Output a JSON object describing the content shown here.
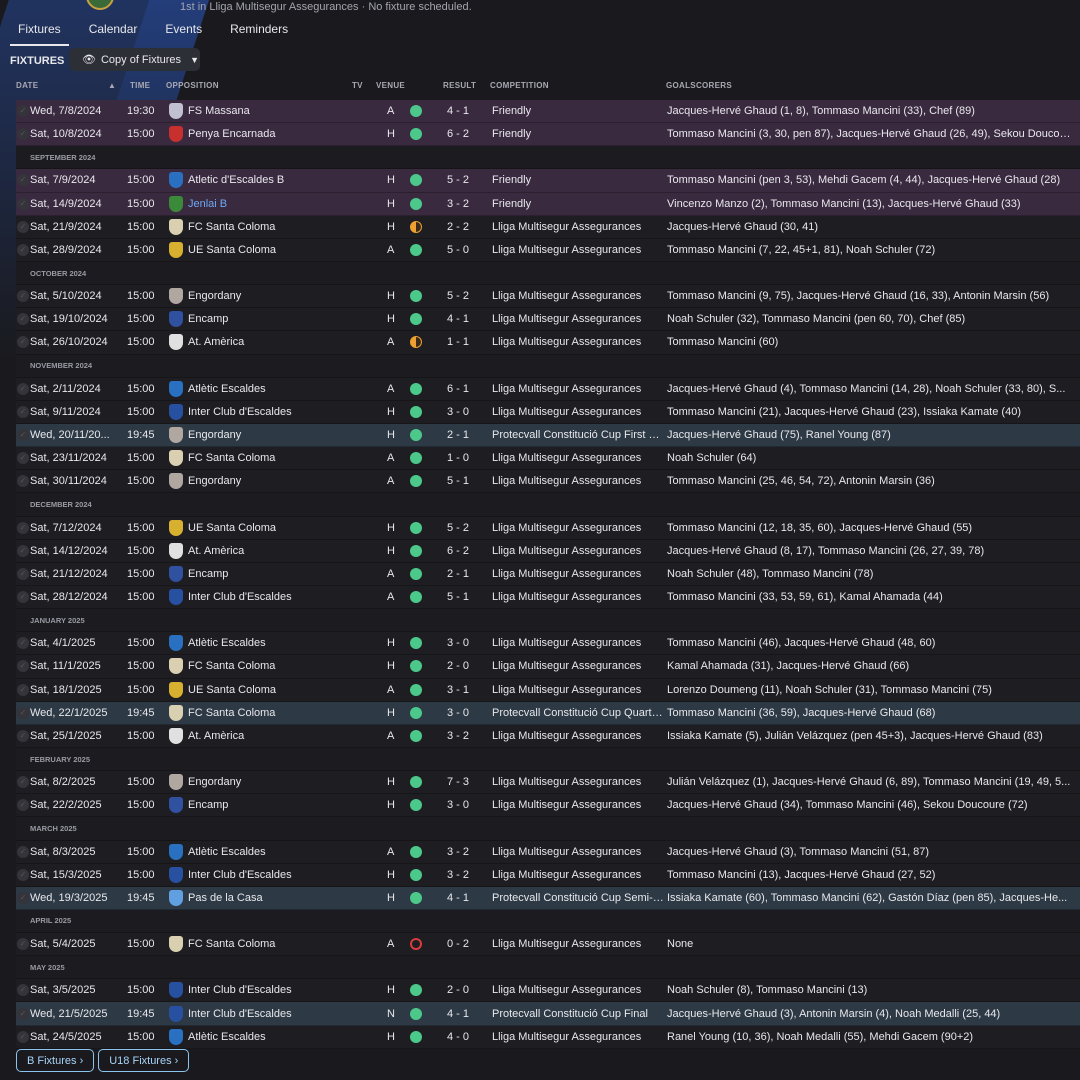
{
  "header": {
    "subtitle": "1st in Lliga Multisegur Assegurances · No fixture scheduled."
  },
  "tabs": [
    "Fixtures",
    "Calendar",
    "Events",
    "Reminders"
  ],
  "section_title": "FIXTURES",
  "view_selector": "Copy of Fixtures",
  "columns": {
    "date": "DATE",
    "time": "TIME",
    "opposition": "OPPOSITION",
    "tv": "TV",
    "venue": "VENUE",
    "result": "RESULT",
    "competition": "COMPETITION",
    "goalscorers": "GOALSCORERS"
  },
  "colors": {
    "win": "#4cc98a",
    "draw": "#f0a030",
    "loss": "#d83c3c",
    "friendly_row": "#3a2a40",
    "cup_row": "#2d3944"
  },
  "rows": [
    {
      "type": "friendly",
      "date": "Wed, 7/8/2024",
      "time": "19:30",
      "opp": "FS Massana",
      "crest": "#c0c0d0",
      "venue": "A",
      "result": "win",
      "score": "4 - 1",
      "comp": "Friendly",
      "scorers": "Jacques-Hervé Ghaud (1, 8), Tommaso Mancini (33), Chef (89)"
    },
    {
      "type": "friendly",
      "date": "Sat, 10/8/2024",
      "time": "15:00",
      "opp": "Penya Encarnada",
      "crest": "#c83030",
      "venue": "H",
      "result": "win",
      "score": "6 - 2",
      "comp": "Friendly",
      "scorers": "Tommaso Mancini (3, 30, pen 87), Jacques-Hervé Ghaud (26, 49), Sekou Doucoure"
    },
    {
      "type": "month",
      "label": "SEPTEMBER 2024"
    },
    {
      "type": "friendly",
      "date": "Sat, 7/9/2024",
      "time": "15:00",
      "opp": "Atletic d'Escaldes B",
      "crest": "#2a70c0",
      "venue": "H",
      "result": "win",
      "score": "5 - 2",
      "comp": "Friendly",
      "scorers": "Tommaso Mancini (pen 3, 53), Mehdi Gacem (4, 44), Jacques-Hervé Ghaud (28)"
    },
    {
      "type": "friendly",
      "date": "Sat, 14/9/2024",
      "time": "15:00",
      "opp": "Jenlai B",
      "link": true,
      "crest": "#3a8a3a",
      "venue": "H",
      "result": "win",
      "score": "3 - 2",
      "comp": "Friendly",
      "scorers": "Vincenzo Manzo (2), Tommaso Mancini (13), Jacques-Hervé Ghaud (33)"
    },
    {
      "type": "league",
      "date": "Sat, 21/9/2024",
      "time": "15:00",
      "opp": "FC Santa Coloma",
      "crest": "#d8d0b0",
      "venue": "H",
      "result": "draw",
      "score": "2 - 2",
      "comp": "Lliga Multisegur Assegurances",
      "scorers": "Jacques-Hervé Ghaud (30, 41)"
    },
    {
      "type": "league",
      "date": "Sat, 28/9/2024",
      "time": "15:00",
      "opp": "UE Santa Coloma",
      "crest": "#d8b030",
      "venue": "A",
      "result": "win",
      "score": "5 - 0",
      "comp": "Lliga Multisegur Assegurances",
      "scorers": "Tommaso Mancini (7, 22, 45+1, 81), Noah Schuler (72)"
    },
    {
      "type": "month",
      "label": "OCTOBER 2024"
    },
    {
      "type": "league",
      "date": "Sat, 5/10/2024",
      "time": "15:00",
      "opp": "Engordany",
      "crest": "#b0a8a0",
      "venue": "H",
      "result": "win",
      "score": "5 - 2",
      "comp": "Lliga Multisegur Assegurances",
      "scorers": "Tommaso Mancini (9, 75), Jacques-Hervé Ghaud (16, 33), Antonin Marsin (56)"
    },
    {
      "type": "league",
      "date": "Sat, 19/10/2024",
      "time": "15:00",
      "opp": "Encamp",
      "crest": "#3050a0",
      "venue": "H",
      "result": "win",
      "score": "4 - 1",
      "comp": "Lliga Multisegur Assegurances",
      "scorers": "Noah Schuler (32), Tommaso Mancini (pen 60, 70), Chef (85)"
    },
    {
      "type": "league",
      "date": "Sat, 26/10/2024",
      "time": "15:00",
      "opp": "At. Amèrica",
      "crest": "#e0e0e0",
      "venue": "A",
      "result": "draw",
      "score": "1 - 1",
      "comp": "Lliga Multisegur Assegurances",
      "scorers": "Tommaso Mancini (60)"
    },
    {
      "type": "month",
      "label": "NOVEMBER 2024"
    },
    {
      "type": "league",
      "date": "Sat, 2/11/2024",
      "time": "15:00",
      "opp": "Atlètic Escaldes",
      "crest": "#2a70c0",
      "venue": "A",
      "result": "win",
      "score": "6 - 1",
      "comp": "Lliga Multisegur Assegurances",
      "scorers": "Jacques-Hervé Ghaud (4), Tommaso Mancini (14, 28), Noah Schuler (33, 80), S..."
    },
    {
      "type": "league",
      "date": "Sat, 9/11/2024",
      "time": "15:00",
      "opp": "Inter Club d'Escaldes",
      "crest": "#2850a0",
      "venue": "H",
      "result": "win",
      "score": "3 - 0",
      "comp": "Lliga Multisegur Assegurances",
      "scorers": "Tommaso Mancini (21), Jacques-Hervé Ghaud (23), Issiaka Kamate (40)"
    },
    {
      "type": "cup",
      "date": "Wed, 20/11/20...",
      "time": "19:45",
      "opp": "Engordany",
      "crest": "#b0a8a0",
      "venue": "H",
      "result": "win",
      "score": "2 - 1",
      "comp": "Protecvall Constitució Cup First Round",
      "scorers": "Jacques-Hervé Ghaud (75), Ranel Young (87)"
    },
    {
      "type": "league",
      "date": "Sat, 23/11/2024",
      "time": "15:00",
      "opp": "FC Santa Coloma",
      "crest": "#d8d0b0",
      "venue": "A",
      "result": "win",
      "score": "1 - 0",
      "comp": "Lliga Multisegur Assegurances",
      "scorers": "Noah Schuler (64)"
    },
    {
      "type": "league",
      "date": "Sat, 30/11/2024",
      "time": "15:00",
      "opp": "Engordany",
      "crest": "#b0a8a0",
      "venue": "A",
      "result": "win",
      "score": "5 - 1",
      "comp": "Lliga Multisegur Assegurances",
      "scorers": "Tommaso Mancini (25, 46, 54, 72), Antonin Marsin (36)"
    },
    {
      "type": "month",
      "label": "DECEMBER 2024"
    },
    {
      "type": "league",
      "date": "Sat, 7/12/2024",
      "time": "15:00",
      "opp": "UE Santa Coloma",
      "crest": "#d8b030",
      "venue": "H",
      "result": "win",
      "score": "5 - 2",
      "comp": "Lliga Multisegur Assegurances",
      "scorers": "Tommaso Mancini (12, 18, 35, 60), Jacques-Hervé Ghaud (55)"
    },
    {
      "type": "league",
      "date": "Sat, 14/12/2024",
      "time": "15:00",
      "opp": "At. Amèrica",
      "crest": "#e0e0e0",
      "venue": "H",
      "result": "win",
      "score": "6 - 2",
      "comp": "Lliga Multisegur Assegurances",
      "scorers": "Jacques-Hervé Ghaud (8, 17), Tommaso Mancini (26, 27, 39, 78)"
    },
    {
      "type": "league",
      "date": "Sat, 21/12/2024",
      "time": "15:00",
      "opp": "Encamp",
      "crest": "#3050a0",
      "venue": "A",
      "result": "win",
      "score": "2 - 1",
      "comp": "Lliga Multisegur Assegurances",
      "scorers": "Noah Schuler (48), Tommaso Mancini (78)"
    },
    {
      "type": "league",
      "date": "Sat, 28/12/2024",
      "time": "15:00",
      "opp": "Inter Club d'Escaldes",
      "crest": "#2850a0",
      "venue": "A",
      "result": "win",
      "score": "5 - 1",
      "comp": "Lliga Multisegur Assegurances",
      "scorers": "Tommaso Mancini (33, 53, 59, 61), Kamal Ahamada (44)"
    },
    {
      "type": "month",
      "label": "JANUARY 2025"
    },
    {
      "type": "league",
      "date": "Sat, 4/1/2025",
      "time": "15:00",
      "opp": "Atlètic Escaldes",
      "crest": "#2a70c0",
      "venue": "H",
      "result": "win",
      "score": "3 - 0",
      "comp": "Lliga Multisegur Assegurances",
      "scorers": "Tommaso Mancini (46), Jacques-Hervé Ghaud (48, 60)"
    },
    {
      "type": "league",
      "date": "Sat, 11/1/2025",
      "time": "15:00",
      "opp": "FC Santa Coloma",
      "crest": "#d8d0b0",
      "venue": "H",
      "result": "win",
      "score": "2 - 0",
      "comp": "Lliga Multisegur Assegurances",
      "scorers": "Kamal Ahamada (31), Jacques-Hervé Ghaud (66)"
    },
    {
      "type": "league",
      "date": "Sat, 18/1/2025",
      "time": "15:00",
      "opp": "UE Santa Coloma",
      "crest": "#d8b030",
      "venue": "A",
      "result": "win",
      "score": "3 - 1",
      "comp": "Lliga Multisegur Assegurances",
      "scorers": "Lorenzo Doumeng (11), Noah Schuler (31), Tommaso Mancini (75)"
    },
    {
      "type": "cup",
      "date": "Wed, 22/1/2025",
      "time": "19:45",
      "opp": "FC Santa Coloma",
      "crest": "#d8d0b0",
      "venue": "H",
      "result": "win",
      "score": "3 - 0",
      "comp": "Protecvall Constitució Cup Quarter-Final",
      "scorers": "Tommaso Mancini (36, 59), Jacques-Hervé Ghaud (68)"
    },
    {
      "type": "league",
      "date": "Sat, 25/1/2025",
      "time": "15:00",
      "opp": "At. Amèrica",
      "crest": "#e0e0e0",
      "venue": "A",
      "result": "win",
      "score": "3 - 2",
      "comp": "Lliga Multisegur Assegurances",
      "scorers": "Issiaka Kamate (5), Julián Velázquez (pen 45+3), Jacques-Hervé Ghaud (83)"
    },
    {
      "type": "month",
      "label": "FEBRUARY 2025"
    },
    {
      "type": "league",
      "date": "Sat, 8/2/2025",
      "time": "15:00",
      "opp": "Engordany",
      "crest": "#b0a8a0",
      "venue": "H",
      "result": "win",
      "score": "7 - 3",
      "comp": "Lliga Multisegur Assegurances",
      "scorers": "Julián Velázquez (1), Jacques-Hervé Ghaud (6, 89), Tommaso Mancini (19, 49, 5..."
    },
    {
      "type": "league",
      "date": "Sat, 22/2/2025",
      "time": "15:00",
      "opp": "Encamp",
      "crest": "#3050a0",
      "venue": "H",
      "result": "win",
      "score": "3 - 0",
      "comp": "Lliga Multisegur Assegurances",
      "scorers": "Jacques-Hervé Ghaud (34), Tommaso Mancini (46), Sekou Doucoure (72)"
    },
    {
      "type": "month",
      "label": "MARCH 2025"
    },
    {
      "type": "league",
      "date": "Sat, 8/3/2025",
      "time": "15:00",
      "opp": "Atlètic Escaldes",
      "crest": "#2a70c0",
      "venue": "A",
      "result": "win",
      "score": "3 - 2",
      "comp": "Lliga Multisegur Assegurances",
      "scorers": "Jacques-Hervé Ghaud (3), Tommaso Mancini (51, 87)"
    },
    {
      "type": "league",
      "date": "Sat, 15/3/2025",
      "time": "15:00",
      "opp": "Inter Club d'Escaldes",
      "crest": "#2850a0",
      "venue": "H",
      "result": "win",
      "score": "3 - 2",
      "comp": "Lliga Multisegur Assegurances",
      "scorers": "Tommaso Mancini (13), Jacques-Hervé Ghaud (27, 52)"
    },
    {
      "type": "cup",
      "date": "Wed, 19/3/2025",
      "time": "19:45",
      "opp": "Pas de la Casa",
      "crest": "#60a0e0",
      "venue": "H",
      "result": "win",
      "score": "4 - 1",
      "comp": "Protecvall Constitució Cup Semi-Final",
      "scorers": "Issiaka Kamate (60), Tommaso Mancini (62), Gastón Díaz (pen 85), Jacques-He..."
    },
    {
      "type": "month",
      "label": "APRIL 2025"
    },
    {
      "type": "league",
      "date": "Sat, 5/4/2025",
      "time": "15:00",
      "opp": "FC Santa Coloma",
      "crest": "#d8d0b0",
      "venue": "A",
      "result": "loss",
      "score": "0 - 2",
      "comp": "Lliga Multisegur Assegurances",
      "scorers": "None"
    },
    {
      "type": "month",
      "label": "MAY 2025"
    },
    {
      "type": "league",
      "date": "Sat, 3/5/2025",
      "time": "15:00",
      "opp": "Inter Club d'Escaldes",
      "crest": "#2850a0",
      "venue": "H",
      "result": "win",
      "score": "2 - 0",
      "comp": "Lliga Multisegur Assegurances",
      "scorers": "Noah Schuler (8), Tommaso Mancini (13)"
    },
    {
      "type": "cup",
      "date": "Wed, 21/5/2025",
      "time": "19:45",
      "opp": "Inter Club d'Escaldes",
      "crest": "#2850a0",
      "venue": "N",
      "result": "win",
      "score": "4 - 1",
      "comp": "Protecvall Constitució Cup Final",
      "scorers": "Jacques-Hervé Ghaud (3), Antonin Marsin (4), Noah Medalli (25, 44)"
    },
    {
      "type": "league",
      "date": "Sat, 24/5/2025",
      "time": "15:00",
      "opp": "Atlètic Escaldes",
      "crest": "#2a70c0",
      "venue": "H",
      "result": "win",
      "score": "4 - 0",
      "comp": "Lliga Multisegur Assegurances",
      "scorers": "Ranel Young (10, 36), Noah Medalli (55), Mehdi Gacem (90+2)"
    }
  ],
  "bottom_buttons": [
    "B Fixtures ›",
    "U18 Fixtures ›"
  ]
}
